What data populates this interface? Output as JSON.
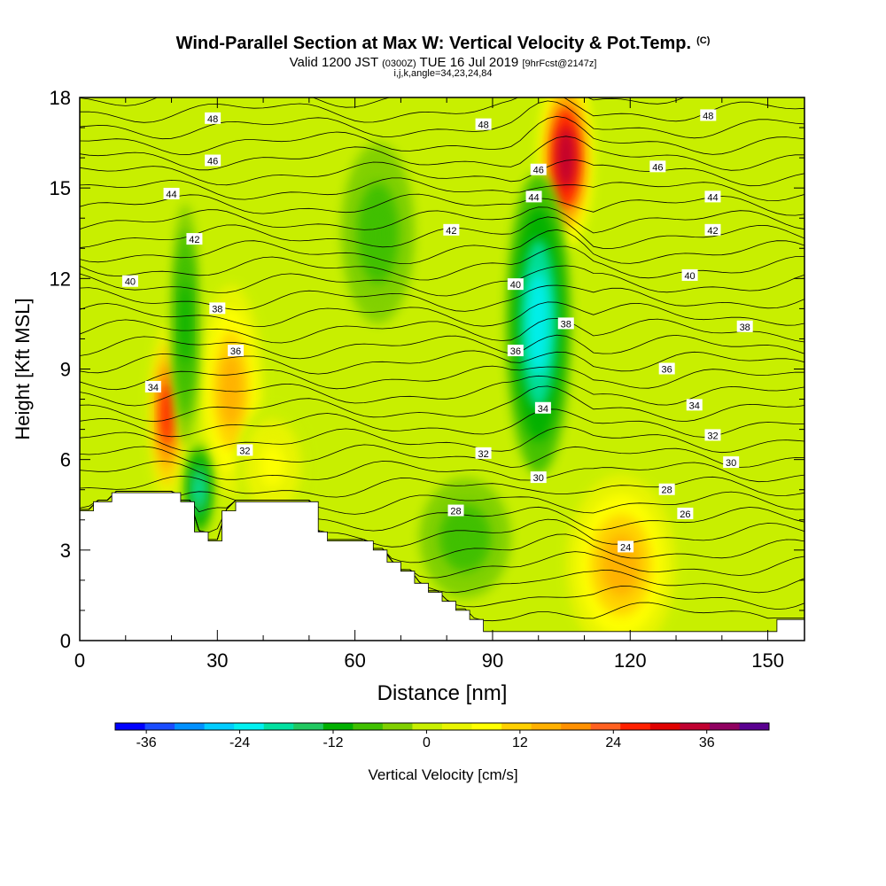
{
  "header": {
    "title": "Wind-Parallel Section at Max W: Vertical Velocity & Pot.Temp.",
    "copyright": "(C)",
    "valid_prefix": "Valid 1200 JST",
    "valid_utc": "(0300Z)",
    "valid_date": "TUE 16 Jul 2019",
    "forecast": "[9hrFcst@2147z]",
    "indices": "i,j,k,angle=34,23,24,84"
  },
  "chart_data": {
    "type": "heatmap",
    "xlabel": "Distance [nm]",
    "ylabel": "Height [Kft MSL]",
    "xlim": [
      0,
      158
    ],
    "ylim": [
      0,
      18
    ],
    "x_ticks": [
      0,
      30,
      60,
      90,
      120,
      150
    ],
    "y_ticks": [
      0,
      3,
      6,
      9,
      12,
      15,
      18
    ],
    "colorbar": {
      "label": "Vertical Velocity [cm/s]",
      "min": -40,
      "max": 44,
      "step": 4,
      "tick_labels": [
        -36,
        -24,
        -12,
        0,
        12,
        24,
        36
      ],
      "colors": [
        "#0000ff",
        "#1a4cff",
        "#0090ff",
        "#00ccff",
        "#00f0f0",
        "#00e0a0",
        "#20c860",
        "#00b000",
        "#40c000",
        "#80d000",
        "#c8ef00",
        "#e8f400",
        "#ffff00",
        "#ffd000",
        "#ffb000",
        "#ff9000",
        "#ff6020",
        "#ff2000",
        "#e00000",
        "#c00030",
        "#900060",
        "#5a0090"
      ]
    },
    "theta_contour_labels": [
      {
        "value": "48",
        "x": 29,
        "y": 17.3
      },
      {
        "value": "48",
        "x": 88,
        "y": 17.1
      },
      {
        "value": "48",
        "x": 137,
        "y": 17.4
      },
      {
        "value": "46",
        "x": 29,
        "y": 15.9
      },
      {
        "value": "46",
        "x": 100,
        "y": 15.6
      },
      {
        "value": "46",
        "x": 126,
        "y": 15.7
      },
      {
        "value": "44",
        "x": 20,
        "y": 14.8
      },
      {
        "value": "44",
        "x": 99,
        "y": 14.7
      },
      {
        "value": "44",
        "x": 138,
        "y": 14.7
      },
      {
        "value": "42",
        "x": 25,
        "y": 13.3
      },
      {
        "value": "42",
        "x": 81,
        "y": 13.6
      },
      {
        "value": "42",
        "x": 138,
        "y": 13.6
      },
      {
        "value": "40",
        "x": 11,
        "y": 11.9
      },
      {
        "value": "40",
        "x": 95,
        "y": 11.8
      },
      {
        "value": "40",
        "x": 133,
        "y": 12.1
      },
      {
        "value": "38",
        "x": 30,
        "y": 11.0
      },
      {
        "value": "38",
        "x": 106,
        "y": 10.5
      },
      {
        "value": "38",
        "x": 145,
        "y": 10.4
      },
      {
        "value": "36",
        "x": 34,
        "y": 9.6
      },
      {
        "value": "36",
        "x": 95,
        "y": 9.6
      },
      {
        "value": "36",
        "x": 128,
        "y": 9.0
      },
      {
        "value": "34",
        "x": 16,
        "y": 8.4
      },
      {
        "value": "34",
        "x": 101,
        "y": 7.7
      },
      {
        "value": "34",
        "x": 134,
        "y": 7.8
      },
      {
        "value": "32",
        "x": 36,
        "y": 6.3
      },
      {
        "value": "32",
        "x": 88,
        "y": 6.2
      },
      {
        "value": "32",
        "x": 138,
        "y": 6.8
      },
      {
        "value": "30",
        "x": 100,
        "y": 5.4
      },
      {
        "value": "30",
        "x": 142,
        "y": 5.9
      },
      {
        "value": "28",
        "x": 82,
        "y": 4.3
      },
      {
        "value": "28",
        "x": 128,
        "y": 5.0
      },
      {
        "value": "26",
        "x": 132,
        "y": 4.2
      },
      {
        "value": "24",
        "x": 119,
        "y": 3.1
      }
    ],
    "terrain_kft": [
      [
        0,
        4.3
      ],
      [
        3,
        4.3
      ],
      [
        3,
        4.6
      ],
      [
        7,
        4.6
      ],
      [
        7,
        4.9
      ],
      [
        22,
        4.9
      ],
      [
        22,
        4.6
      ],
      [
        25,
        4.6
      ],
      [
        25,
        3.6
      ],
      [
        28,
        3.6
      ],
      [
        28,
        3.3
      ],
      [
        31,
        3.3
      ],
      [
        31,
        4.3
      ],
      [
        34,
        4.3
      ],
      [
        34,
        4.6
      ],
      [
        52,
        4.6
      ],
      [
        52,
        3.6
      ],
      [
        54,
        3.6
      ],
      [
        54,
        3.3
      ],
      [
        64,
        3.3
      ],
      [
        64,
        3.0
      ],
      [
        67,
        3.0
      ],
      [
        67,
        2.6
      ],
      [
        70,
        2.6
      ],
      [
        70,
        2.3
      ],
      [
        73,
        2.3
      ],
      [
        73,
        1.9
      ],
      [
        76,
        1.9
      ],
      [
        76,
        1.6
      ],
      [
        79,
        1.6
      ],
      [
        79,
        1.3
      ],
      [
        82,
        1.3
      ],
      [
        82,
        1.0
      ],
      [
        85,
        1.0
      ],
      [
        85,
        0.7
      ],
      [
        88,
        0.7
      ],
      [
        88,
        0.3
      ],
      [
        152,
        0.3
      ],
      [
        152,
        0.7
      ],
      [
        158,
        0.7
      ],
      [
        158,
        0
      ]
    ],
    "vertical_velocity_features": [
      {
        "x": 19,
        "y": 7.5,
        "w": 4,
        "h": 3.0,
        "v": 28
      },
      {
        "x": 33,
        "y": 8.3,
        "w": 7,
        "h": 3.5,
        "v": 16
      },
      {
        "x": 23,
        "y": 10.5,
        "w": 3,
        "h": 4.0,
        "v": -10
      },
      {
        "x": 106,
        "y": 16.0,
        "w": 6,
        "h": 3.0,
        "v": 38
      },
      {
        "x": 100,
        "y": 10.5,
        "w": 7,
        "h": 5.0,
        "v": -22
      },
      {
        "x": 118,
        "y": 2.5,
        "w": 12,
        "h": 3.0,
        "v": 16
      },
      {
        "x": 26,
        "y": 5.0,
        "w": 3,
        "h": 1.5,
        "v": -18
      },
      {
        "x": 84,
        "y": 3.4,
        "w": 10,
        "h": 2.0,
        "v": -8
      },
      {
        "x": 65,
        "y": 13.5,
        "w": 8,
        "h": 3.0,
        "v": -6
      },
      {
        "x": 42,
        "y": 5.8,
        "w": 8,
        "h": 2.0,
        "v": 8
      }
    ]
  }
}
